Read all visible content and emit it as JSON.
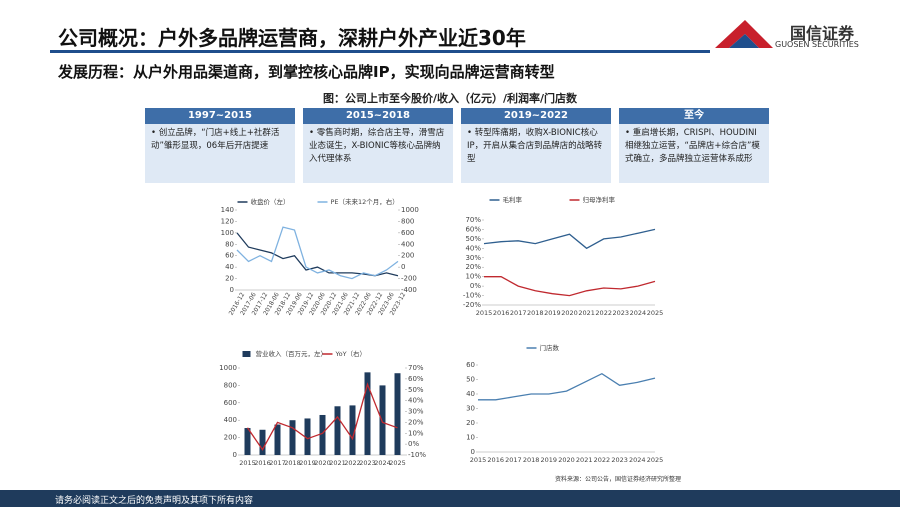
{
  "header": {
    "title": "公司概况：户外多品牌运营商，深耕户外产业近30年",
    "subtitle": "发展历程：从户外用品渠道商，到掌控核心品牌IP，实现向品牌运营商转型"
  },
  "logo": {
    "name": "国信证券",
    "en": "GUOSEN SECURITIES"
  },
  "figure_caption": "图：公司上市至今股价/收入（亿元）/利润率/门店数",
  "stages": [
    {
      "period": "1997~2015",
      "text": "创立品牌，“门店+线上+社群活动”雏形显现，06年后开店提速"
    },
    {
      "period": "2015~2018",
      "text": "零售商时期，综合店主导，滑雪店业态诞生，X-BIONIC等核心品牌纳入代理体系"
    },
    {
      "period": "2019~2022",
      "text": "转型阵痛期，收购X-BIONIC核心IP，开启从集合店到品牌店的战略转型"
    },
    {
      "period": "至今",
      "text": "重启增长期，CRISPI、HOUDINI相继独立运营，“品牌店+综合店”模式确立，多品牌独立运营体系成形"
    }
  ],
  "chart_data": [
    {
      "type": "line",
      "categories": [
        "2016-12",
        "2017-06",
        "2017-12",
        "2018-06",
        "2018-12",
        "2019-06",
        "2019-12",
        "2020-06",
        "2020-12",
        "2021-06",
        "2021-12",
        "2022-06",
        "2022-12",
        "2023-06",
        "2023-12"
      ],
      "series": [
        {
          "name": "收盘价（左）",
          "color": "#1f3b5c",
          "values": [
            100,
            75,
            70,
            65,
            55,
            60,
            35,
            40,
            30,
            30,
            30,
            28,
            25,
            30,
            25
          ]
        },
        {
          "name": "PE（未来12个月，右）",
          "color": "#7fb2e0",
          "axis": "y2",
          "values": [
            300,
            100,
            200,
            100,
            700,
            650,
            0,
            -100,
            -50,
            -150,
            -200,
            -100,
            -150,
            -50,
            100
          ]
        }
      ],
      "ylim": [
        0,
        140
      ],
      "yticks": [
        0,
        20,
        40,
        60,
        80,
        100,
        120,
        140
      ],
      "y2lim": [
        -400,
        1000
      ],
      "y2ticks": [
        -400,
        -200,
        0,
        200,
        400,
        600,
        800,
        1000
      ]
    },
    {
      "type": "line",
      "categories": [
        "2015",
        "2016",
        "2017",
        "2018",
        "2019",
        "2020",
        "2021",
        "2022",
        "2023",
        "2024",
        "2025"
      ],
      "series": [
        {
          "name": "毛利率",
          "color": "#2f5f8f",
          "values": [
            45,
            47,
            48,
            45,
            50,
            55,
            40,
            50,
            52,
            56,
            60
          ]
        },
        {
          "name": "归母净利率",
          "color": "#c0292f",
          "values": [
            10,
            10,
            0,
            -5,
            -8,
            -10,
            -5,
            -2,
            -3,
            0,
            5
          ]
        }
      ],
      "ylim": [
        -20,
        70
      ],
      "yticks": [
        {
          "value": -20,
          "label": "-20%"
        },
        {
          "value": -10,
          "label": "-10%"
        },
        {
          "value": 0,
          "label": "0%"
        },
        {
          "value": 10,
          "label": "10%"
        },
        {
          "value": 20,
          "label": "20%"
        },
        {
          "value": 30,
          "label": "30%"
        },
        {
          "value": 40,
          "label": "40%"
        },
        {
          "value": 50,
          "label": "50%"
        },
        {
          "value": 60,
          "label": "60%"
        },
        {
          "value": 70,
          "label": "70%"
        }
      ]
    },
    {
      "type": "combo",
      "categories": [
        "2015",
        "2016",
        "2017",
        "2018",
        "2019",
        "2020",
        "2021",
        "2022",
        "2023",
        "2024",
        "2025"
      ],
      "series": [
        {
          "name": "营业收入（百万元，左）",
          "color": "#1f3b5c",
          "kind": "bar",
          "values": [
            310,
            290,
            350,
            400,
            420,
            460,
            560,
            570,
            950,
            800,
            940
          ]
        },
        {
          "name": "YoY（右）",
          "color": "#c0292f",
          "kind": "line",
          "axis": "y2",
          "values": [
            15,
            -5,
            20,
            15,
            5,
            10,
            25,
            5,
            55,
            20,
            15
          ]
        }
      ],
      "ylim": [
        0,
        1000
      ],
      "yticks": [
        0,
        200,
        400,
        600,
        800,
        1000
      ],
      "y2lim": [
        -10,
        70
      ],
      "y2ticks": [
        {
          "value": -10,
          "label": "-10%"
        },
        {
          "value": 0,
          "label": "0%"
        },
        {
          "value": 10,
          "label": "10%"
        },
        {
          "value": 20,
          "label": "20%"
        },
        {
          "value": 30,
          "label": "30%"
        },
        {
          "value": 40,
          "label": "40%"
        },
        {
          "value": 50,
          "label": "50%"
        },
        {
          "value": 60,
          "label": "60%"
        },
        {
          "value": 70,
          "label": "70%"
        }
      ]
    },
    {
      "type": "line",
      "categories": [
        "2015",
        "2016",
        "2017",
        "2018",
        "2019",
        "2020",
        "2021",
        "2022",
        "2023",
        "2024",
        "2025"
      ],
      "series": [
        {
          "name": "门店数",
          "color": "#4a7fb0",
          "values": [
            36,
            36,
            38,
            40,
            40,
            42,
            48,
            54,
            46,
            48,
            51
          ]
        }
      ],
      "ylim": [
        0,
        60
      ],
      "yticks": [
        0,
        10,
        20,
        30,
        40,
        50,
        60
      ]
    }
  ],
  "source": "资料来源：公司公告，国信证券经济研究所整理",
  "footer": "请务必阅读正文之后的免责声明及其项下所有内容"
}
